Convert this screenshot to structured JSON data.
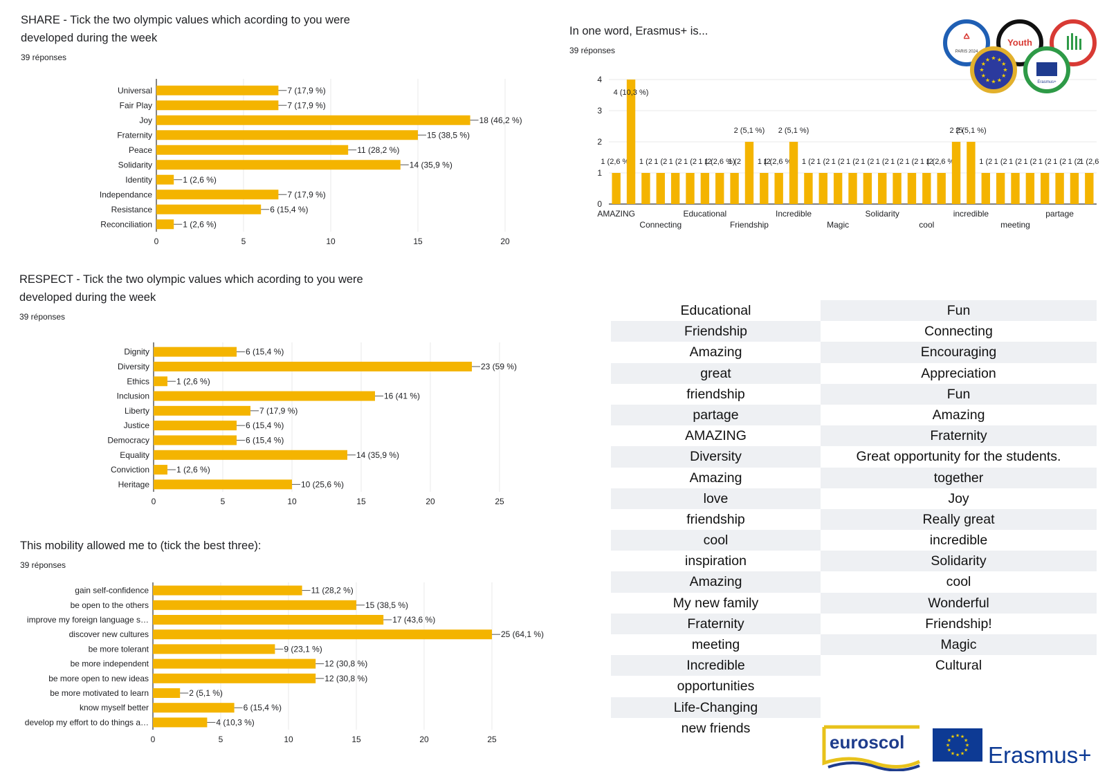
{
  "share": {
    "title_line1": "SHARE - Tick the two olympic values which acording to you were",
    "title_line2": "developed during the week",
    "responses": "39 réponses"
  },
  "respect": {
    "title_line1": "RESPECT - Tick the two olympic values which acording to you were",
    "title_line2": "developed during the week",
    "responses": "39 réponses"
  },
  "mobility": {
    "title": "This mobility allowed me to (tick the best three):",
    "responses": "39 réponses"
  },
  "erasmus_question": {
    "title": "In one word, Erasmus+ is...",
    "responses": "39 réponses"
  },
  "colors": {
    "bar": "#f4b400",
    "grid": "#e8e8e8",
    "axis": "#333333",
    "text": "#202124"
  },
  "chart_data": [
    {
      "id": "share",
      "type": "bar",
      "orientation": "horizontal",
      "categories": [
        "Universal",
        "Fair Play",
        "Joy",
        "Fraternity",
        "Peace",
        "Solidarity",
        "Identity",
        "Independance",
        "Resistance",
        "Reconciliation"
      ],
      "values": [
        7,
        7,
        18,
        15,
        11,
        14,
        1,
        7,
        6,
        1
      ],
      "data_labels": [
        "7 (17,9 %)",
        "7 (17,9 %)",
        "18 (46,2 %)",
        "15 (38,5 %)",
        "11 (28,2 %)",
        "14 (35,9 %)",
        "1 (2,6 %)",
        "7 (17,9 %)",
        "6 (15,4 %)",
        "1 (2,6 %)"
      ],
      "xlim": [
        0,
        20
      ],
      "xticks": [
        0,
        5,
        10,
        15,
        20
      ],
      "grid": true
    },
    {
      "id": "respect",
      "type": "bar",
      "orientation": "horizontal",
      "categories": [
        "Dignity",
        "Diversity",
        "Ethics",
        "Inclusion",
        "Liberty",
        "Justice",
        "Democracy",
        "Equality",
        "Conviction",
        "Heritage"
      ],
      "values": [
        6,
        23,
        1,
        16,
        7,
        6,
        6,
        14,
        1,
        10
      ],
      "data_labels": [
        "6 (15,4 %)",
        "23 (59 %)",
        "1 (2,6 %)",
        "16 (41 %)",
        "7 (17,9 %)",
        "6 (15,4 %)",
        "6 (15,4 %)",
        "14 (35,9 %)",
        "1 (2,6 %)",
        "10 (25,6 %)"
      ],
      "xlim": [
        0,
        25
      ],
      "xticks": [
        0,
        5,
        10,
        15,
        20,
        25
      ],
      "grid": true
    },
    {
      "id": "mobility",
      "type": "bar",
      "orientation": "horizontal",
      "categories": [
        "gain self-confidence",
        "be open to the others",
        "improve my foreign language s…",
        "discover new cultures",
        "be more tolerant",
        "be more independent",
        "be more open to new ideas",
        "be more motivated to learn",
        "know myself better",
        "develop my effort to do things a…"
      ],
      "values": [
        11,
        15,
        17,
        25,
        9,
        12,
        12,
        2,
        6,
        4
      ],
      "data_labels": [
        "11 (28,2 %)",
        "15 (38,5 %)",
        "17 (43,6 %)",
        "25 (64,1 %)",
        "9 (23,1 %)",
        "12 (30,8 %)",
        "12 (30,8 %)",
        "2 (5,1 %)",
        "6 (15,4 %)",
        "4 (10,3 %)"
      ],
      "xlim": [
        0,
        25
      ],
      "xticks": [
        0,
        5,
        10,
        15,
        20,
        25
      ],
      "grid": true
    },
    {
      "id": "erasmus",
      "type": "bar",
      "orientation": "vertical",
      "values": [
        1,
        4,
        1,
        1,
        1,
        1,
        1,
        1,
        1,
        2,
        1,
        1,
        2,
        1,
        1,
        1,
        1,
        1,
        1,
        1,
        1,
        1,
        1,
        2,
        2,
        1,
        1,
        1,
        1,
        1,
        1,
        1,
        1
      ],
      "data_labels": [
        "1 (2,6 %)",
        "4 (10,3 %)",
        "1 (2",
        "1 (2",
        "1 (2",
        "1 (2",
        "1 (2",
        "1 (2,6 %)",
        "1 (2",
        "2 (5,1 %)",
        "1 (2",
        "1 (2,6 %)",
        "2 (5,1 %)",
        "1 (2",
        "1 (2",
        "1 (2",
        "1 (2",
        "1 (2",
        "1 (2",
        "1 (2",
        "1 (2",
        "1 (2",
        "1 (2,6 %)",
        "2 (5",
        "2 (5,1 %)",
        "1 (2",
        "1 (2",
        "1 (2",
        "1 (2",
        "1 (2",
        "1 (2",
        "1 (2",
        "1 (2,6"
      ],
      "xtick_labels_row1": [
        {
          "index": 0,
          "text": "AMAZING"
        },
        {
          "index": 6,
          "text": "Educational"
        },
        {
          "index": 12,
          "text": "Incredible"
        },
        {
          "index": 18,
          "text": "Solidarity"
        },
        {
          "index": 24,
          "text": "incredible"
        },
        {
          "index": 30,
          "text": "partage"
        }
      ],
      "xtick_labels_row2": [
        {
          "index": 3,
          "text": "Connecting"
        },
        {
          "index": 9,
          "text": "Friendship"
        },
        {
          "index": 15,
          "text": "Magic"
        },
        {
          "index": 21,
          "text": "cool"
        },
        {
          "index": 27,
          "text": "meeting"
        }
      ],
      "ylim": [
        0,
        4
      ],
      "yticks": [
        0,
        1,
        2,
        3,
        4
      ],
      "grid": true
    }
  ],
  "words_table": {
    "left": [
      "Educational",
      "Friendship",
      "Amazing",
      "great",
      "friendship",
      "partage",
      "AMAZING",
      "Diversity",
      "Amazing",
      "love",
      "friendship",
      "cool",
      "inspiration",
      "Amazing",
      "My new family",
      "Fraternity",
      "meeting",
      "Incredible",
      "opportunities",
      "Life-Changing",
      "new friends"
    ],
    "right": [
      "Fun",
      "Connecting",
      "Encouraging",
      "Appreciation",
      "Fun",
      "Amazing",
      "Fraternity",
      "Great opportunity for the students.",
      "together",
      "Joy",
      "Really great",
      "incredible",
      "Solidarity",
      "cool",
      "Wonderful",
      "Friendship!",
      "Magic",
      "Cultural"
    ]
  },
  "logos": {
    "euroscol": "euroscol",
    "erasmus": "Erasmus+",
    "olympic_ring_labels": [
      "PARIS 2024",
      "Youth",
      "Erasmus+"
    ]
  }
}
